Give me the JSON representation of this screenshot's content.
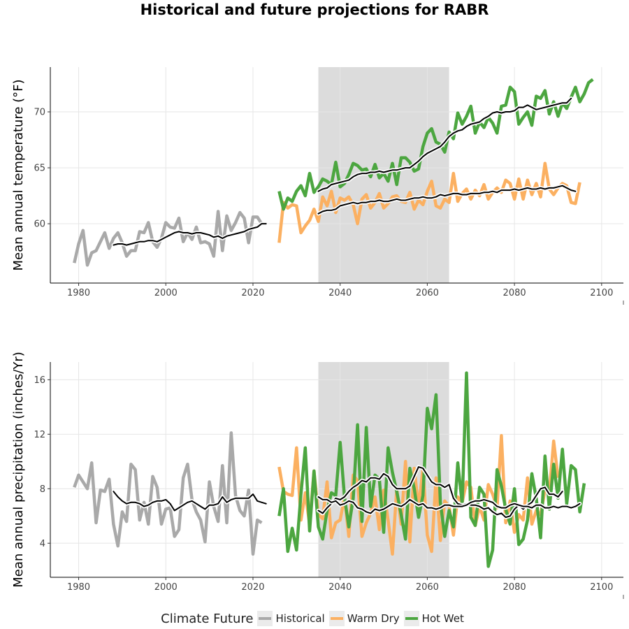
{
  "title": "Historical and future projections for RABR",
  "legend": {
    "title": "Climate Future",
    "items": [
      {
        "label": "Historical",
        "color": "#a9a9a9"
      },
      {
        "label": "Warm Dry",
        "color": "#fbb061"
      },
      {
        "label": "Hot Wet",
        "color": "#4ca640"
      }
    ]
  },
  "chart_data": [
    {
      "type": "line",
      "ylabel": "Mean annual temperature (°F)",
      "xlabel": "",
      "xlim": [
        1973.5,
        2105
      ],
      "ylim": [
        54.7,
        74
      ],
      "xticks": [
        1980,
        2000,
        2020,
        2040,
        2060,
        2080,
        2100
      ],
      "yticks": [
        60,
        65,
        70
      ],
      "ytick_labels": [
        "60",
        "65",
        "70"
      ],
      "shaded_period": [
        2035,
        2065
      ],
      "grid": true,
      "series": [
        {
          "name": "Historical",
          "color": "#a9a9a9",
          "x_start": 1979,
          "values": [
            56.5,
            58.2,
            59.4,
            56.3,
            57.4,
            57.6,
            58.4,
            59.2,
            57.8,
            58.7,
            59.2,
            58.3,
            57.1,
            57.6,
            57.6,
            59.3,
            59.2,
            60.1,
            58.4,
            57.9,
            58.7,
            60.1,
            59.7,
            59.6,
            60.5,
            58.4,
            59.2,
            58.6,
            59.7,
            58.3,
            58.4,
            58.2,
            57.1,
            61.1,
            57.6,
            60.7,
            59.4,
            60.1,
            61.0,
            60.5,
            58.3,
            60.6,
            60.6,
            60.0
          ]
        },
        {
          "name": "Historical (moving average)",
          "color": "#000000",
          "x_start": 1988,
          "values": [
            58.1,
            58.2,
            58.2,
            58.1,
            58.2,
            58.3,
            58.4,
            58.4,
            58.5,
            58.5,
            58.4,
            58.6,
            58.8,
            59.0,
            59.2,
            59.3,
            59.2,
            59.2,
            59.1,
            59.2,
            59.2,
            59.1,
            59.0,
            58.8,
            58.9,
            58.7,
            58.9,
            59.0,
            59.1,
            59.2,
            59.3,
            59.5,
            59.6,
            59.7,
            60.0,
            60.0
          ]
        },
        {
          "name": "Warm Dry",
          "color": "#fbb061",
          "x_start": 2026,
          "values": [
            58.3,
            61.9,
            61.4,
            61.7,
            61.6,
            59.2,
            59.8,
            60.3,
            61.3,
            60.2,
            62.4,
            61.6,
            62.9,
            61.0,
            62.3,
            62.1,
            62.4,
            61.7,
            60.0,
            62.2,
            62.6,
            61.4,
            61.9,
            62.7,
            61.4,
            61.8,
            62.4,
            62.5,
            62.0,
            61.9,
            62.8,
            61.3,
            62.1,
            61.7,
            62.9,
            63.8,
            61.6,
            61.4,
            62.2,
            61.9,
            64.5,
            62.0,
            62.7,
            63.1,
            62.2,
            63.0,
            62.5,
            63.5,
            62.2,
            62.8,
            63.2,
            62.8,
            63.9,
            63.6,
            62.2,
            64.0,
            62.2,
            63.9,
            62.6,
            63.6,
            62.4,
            65.4,
            63.1,
            62.6,
            63.2,
            63.6,
            63.4,
            61.9,
            61.8,
            63.7
          ]
        },
        {
          "name": "Hot Wet",
          "color": "#4ca640",
          "x_start": 2026,
          "values": [
            62.9,
            61.3,
            62.3,
            62.0,
            62.9,
            63.4,
            62.5,
            64.5,
            62.8,
            63.3,
            64.0,
            63.8,
            63.5,
            65.5,
            63.3,
            63.6,
            64.4,
            65.4,
            65.2,
            64.8,
            64.9,
            64.2,
            65.3,
            64.1,
            64.5,
            63.8,
            65.4,
            63.5,
            65.9,
            65.9,
            65.5,
            64.7,
            64.9,
            66.9,
            68.1,
            68.5,
            67.3,
            67.1,
            66.4,
            68.2,
            67.6,
            69.9,
            68.9,
            69.6,
            70.5,
            68.1,
            69.1,
            68.6,
            69.5,
            69.0,
            68.1,
            70.5,
            70.6,
            72.2,
            71.8,
            68.9,
            69.5,
            70.0,
            68.8,
            71.4,
            71.2,
            71.9,
            69.8,
            70.9,
            69.6,
            70.8,
            70.3,
            71.3,
            72.2,
            70.9,
            71.6,
            72.6,
            72.9
          ]
        },
        {
          "name": "Warm Dry (moving average)",
          "color": "#000000",
          "x_start": 2035,
          "values": [
            60.9,
            61.1,
            61.2,
            61.2,
            61.3,
            61.6,
            61.7,
            61.8,
            61.9,
            61.8,
            61.9,
            61.9,
            62.0,
            62.0,
            62.1,
            62.0,
            62.0,
            62.1,
            62.2,
            62.1,
            62.1,
            62.2,
            62.3,
            62.3,
            62.4,
            62.3,
            62.3,
            62.4,
            62.6,
            62.5,
            62.6,
            62.7,
            62.7,
            62.6,
            62.6,
            62.7,
            62.7,
            62.7,
            62.8,
            62.8,
            62.9,
            62.8,
            63.0,
            63.0,
            63.0,
            63.1,
            63.0,
            63.1,
            63.2,
            63.1,
            63.1,
            63.2,
            63.1,
            63.2,
            63.2,
            63.3,
            63.4,
            63.2,
            63.0,
            62.9
          ]
        },
        {
          "name": "Hot Wet (moving average)",
          "color": "#000000",
          "x_start": 2035,
          "values": [
            62.9,
            63.1,
            63.2,
            63.5,
            63.6,
            63.7,
            63.8,
            63.9,
            64.2,
            64.4,
            64.5,
            64.5,
            64.6,
            64.6,
            64.7,
            64.6,
            64.7,
            64.8,
            64.8,
            64.9,
            65.0,
            65.0,
            65.3,
            65.6,
            66.0,
            66.3,
            66.5,
            66.7,
            66.9,
            67.3,
            67.8,
            68.1,
            68.3,
            68.4,
            68.7,
            68.9,
            69.0,
            69.1,
            69.4,
            69.6,
            69.9,
            70.0,
            69.9,
            70.0,
            70.0,
            70.1,
            70.4,
            70.4,
            70.6,
            70.4,
            70.2,
            70.3,
            70.4,
            70.5,
            70.6,
            70.7,
            70.8,
            70.8,
            71.2
          ]
        }
      ]
    },
    {
      "type": "line",
      "ylabel": "Mean annual precipitation (inches/Yr)",
      "xlabel": "",
      "xlim": [
        1973.5,
        2105
      ],
      "ylim": [
        1.5,
        17.3
      ],
      "xticks": [
        1980,
        2000,
        2020,
        2040,
        2060,
        2080,
        2100
      ],
      "yticks": [
        4,
        8,
        12,
        16
      ],
      "ytick_labels": [
        "4",
        "8",
        "12",
        "16"
      ],
      "shaded_period": [
        2035,
        2065
      ],
      "grid": true,
      "series": [
        {
          "name": "Historical",
          "color": "#a9a9a9",
          "x_start": 1979,
          "values": [
            8.1,
            9.0,
            8.5,
            8.0,
            9.9,
            5.5,
            7.9,
            7.8,
            8.7,
            5.4,
            3.8,
            6.3,
            5.6,
            9.8,
            9.4,
            5.7,
            7.0,
            5.4,
            8.9,
            8.1,
            5.4,
            6.5,
            6.6,
            4.5,
            5.0,
            8.8,
            9.8,
            7.2,
            6.3,
            5.7,
            4.1,
            8.5,
            6.7,
            5.6,
            9.7,
            5.5,
            12.1,
            7.5,
            6.4,
            6.0,
            7.9,
            3.2,
            5.7,
            5.5
          ]
        },
        {
          "name": "Historical (moving average)",
          "color": "#000000",
          "x_start": 1988,
          "values": [
            7.8,
            7.4,
            7.1,
            6.9,
            7.0,
            7.0,
            6.9,
            6.7,
            6.8,
            7.0,
            7.1,
            7.1,
            7.2,
            6.9,
            6.4,
            6.6,
            6.8,
            7.0,
            7.1,
            6.9,
            6.7,
            6.5,
            6.8,
            6.8,
            6.9,
            7.4,
            7.0,
            7.2,
            7.3,
            7.3,
            7.3,
            7.3,
            7.6,
            7.1,
            7.0,
            6.9
          ]
        },
        {
          "name": "Warm Dry",
          "color": "#fbb061",
          "x_start": 2026,
          "values": [
            9.6,
            7.8,
            7.6,
            7.5,
            11.0,
            5.7,
            7.7,
            5.4,
            9.3,
            6.1,
            5.8,
            8.5,
            4.4,
            5.5,
            5.7,
            7.4,
            4.5,
            9.0,
            8.6,
            4.5,
            5.5,
            6.2,
            7.4,
            5.0,
            7.9,
            5.7,
            3.2,
            8.0,
            5.4,
            10.0,
            4.1,
            9.5,
            6.6,
            9.5,
            4.6,
            3.4,
            8.8,
            4.2,
            7.1,
            6.7,
            4.6,
            7.4,
            7.0,
            8.5,
            8.1,
            5.3,
            6.7,
            5.7,
            8.3,
            7.6,
            6.6,
            11.9,
            5.5,
            7.1,
            4.8,
            6.1,
            5.7,
            8.8,
            5.4,
            6.4,
            6.1,
            7.9,
            7.7,
            11.5,
            8.8
          ]
        },
        {
          "name": "Hot Wet",
          "color": "#4ca640",
          "x_start": 2026,
          "values": [
            6.0,
            8.0,
            3.4,
            5.1,
            3.5,
            7.6,
            11.0,
            4.9,
            9.3,
            5.2,
            4.3,
            6.4,
            7.7,
            7.5,
            11.4,
            7.4,
            5.2,
            7.3,
            12.7,
            5.6,
            12.5,
            6.7,
            9.0,
            8.7,
            4.8,
            11.0,
            9.2,
            7.8,
            6.1,
            4.3,
            9.5,
            8.0,
            5.9,
            7.5,
            13.9,
            12.4,
            14.9,
            7.0,
            4.5,
            6.4,
            5.2,
            9.9,
            6.9,
            16.5,
            5.9,
            5.3,
            8.1,
            7.6,
            2.3,
            3.5,
            9.4,
            8.2,
            6.5,
            5.4,
            8.0,
            3.9,
            4.3,
            5.7,
            9.1,
            7.3,
            4.4,
            10.4,
            6.5,
            9.8,
            7.3,
            10.9,
            6.9,
            9.7,
            9.4,
            6.3,
            8.4
          ]
        },
        {
          "name": "Hot Wet (moving average)",
          "color": "#000000",
          "x_start": 2035,
          "values": [
            6.4,
            6.2,
            6.6,
            6.9,
            7.3,
            7.2,
            7.4,
            7.8,
            8.1,
            8.3,
            8.6,
            8.5,
            8.8,
            8.8,
            8.7,
            9.1,
            8.9,
            8.3,
            8.0,
            8.0,
            8.0,
            8.2,
            8.9,
            9.6,
            9.5,
            9.0,
            8.5,
            8.3,
            8.3,
            8.1,
            8.3,
            7.3,
            6.9,
            6.8,
            6.9,
            6.8,
            6.8,
            6.7,
            6.5,
            6.6,
            6.3,
            6.1,
            6.2,
            5.9,
            6.0,
            6.5,
            6.8,
            6.5,
            6.8,
            7.0,
            7.5,
            8.0,
            8.1,
            7.6,
            7.6,
            7.4,
            7.8
          ]
        },
        {
          "name": "Warm Dry (moving average)",
          "color": "#000000",
          "x_start": 2035,
          "values": [
            7.4,
            7.2,
            7.2,
            7.0,
            7.1,
            6.8,
            6.9,
            7.1,
            7.0,
            6.6,
            6.5,
            6.3,
            6.2,
            6.5,
            6.4,
            6.5,
            6.7,
            6.9,
            6.8,
            6.7,
            6.9,
            7.2,
            7.0,
            6.8,
            6.9,
            6.6,
            6.6,
            6.5,
            6.6,
            6.8,
            6.8,
            6.7,
            6.7,
            6.7,
            6.8,
            7.0,
            7.1,
            7.1,
            7.2,
            7.1,
            7.0,
            6.7,
            6.6,
            6.6,
            6.8,
            6.9,
            6.8,
            6.7,
            6.7,
            6.6,
            6.8,
            6.8,
            6.6,
            6.6,
            6.7,
            6.6,
            6.7,
            6.7,
            6.6,
            6.7,
            6.9
          ]
        }
      ]
    }
  ]
}
